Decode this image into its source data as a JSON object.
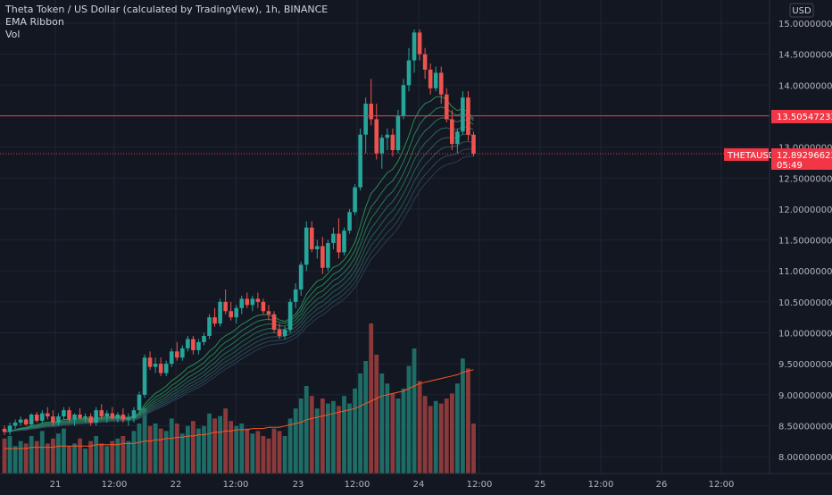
{
  "header": {
    "title": "Theta Token / US Dollar (calculated by TradingView), 1h, BINANCE",
    "indicator_1": "EMA Ribbon",
    "indicator_2": "Vol"
  },
  "axis": {
    "currency": "USD",
    "y_ticks": [
      "15.00000000",
      "14.50000000",
      "14.00000000",
      "13.50000000",
      "13.00000000",
      "12.50000000",
      "12.00000000",
      "11.50000000",
      "11.00000000",
      "10.50000000",
      "10.00000000",
      "9.50000000",
      "9.00000000",
      "8.50000000",
      "8.00000000"
    ],
    "x_ticks": [
      "21",
      "12:00",
      "22",
      "12:00",
      "23",
      "12:00",
      "24",
      "12:00",
      "25",
      "12:00",
      "26",
      "12:00"
    ]
  },
  "labels": {
    "alert_price": "13.50547233",
    "symbol": "THETAUSD",
    "last_price": "12.89296623",
    "countdown": "05:49"
  },
  "colors": {
    "background": "#131722",
    "up": "#26a69a",
    "down": "#ef5350",
    "vol_up": "#1e6c66",
    "vol_down": "#8b3a3c",
    "ribbon": "#2e9e62",
    "volume_ma": "#ff5722",
    "alert_line": "#f23645",
    "grid": "#1f2433",
    "axis_text": "#b2b5be"
  },
  "chart_data": {
    "type": "candlestick",
    "title": "Theta Token / US Dollar (calculated by TradingView), 1h, BINANCE",
    "x_range": [
      "21 00:00",
      "26 12:00"
    ],
    "y_range": [
      7.9,
      15.2
    ],
    "alert_line": 13.50547233,
    "last_price": 12.89296623,
    "ohlc": [
      [
        8.45,
        8.5,
        8.35,
        8.4
      ],
      [
        8.4,
        8.55,
        8.35,
        8.5
      ],
      [
        8.5,
        8.6,
        8.45,
        8.55
      ],
      [
        8.55,
        8.65,
        8.5,
        8.6
      ],
      [
        8.6,
        8.62,
        8.5,
        8.52
      ],
      [
        8.52,
        8.7,
        8.5,
        8.68
      ],
      [
        8.68,
        8.72,
        8.55,
        8.58
      ],
      [
        8.58,
        8.75,
        8.55,
        8.7
      ],
      [
        8.7,
        8.8,
        8.6,
        8.65
      ],
      [
        8.65,
        8.75,
        8.5,
        8.55
      ],
      [
        8.55,
        8.7,
        8.5,
        8.65
      ],
      [
        8.65,
        8.8,
        8.6,
        8.75
      ],
      [
        8.75,
        8.8,
        8.55,
        8.6
      ],
      [
        8.6,
        8.7,
        8.5,
        8.68
      ],
      [
        8.68,
        8.78,
        8.6,
        8.62
      ],
      [
        8.62,
        8.7,
        8.55,
        8.65
      ],
      [
        8.65,
        8.7,
        8.5,
        8.55
      ],
      [
        8.55,
        8.8,
        8.5,
        8.75
      ],
      [
        8.75,
        8.85,
        8.6,
        8.65
      ],
      [
        8.65,
        8.75,
        8.55,
        8.7
      ],
      [
        8.7,
        8.8,
        8.6,
        8.62
      ],
      [
        8.62,
        8.72,
        8.55,
        8.68
      ],
      [
        8.68,
        8.78,
        8.55,
        8.6
      ],
      [
        8.6,
        8.7,
        8.5,
        8.62
      ],
      [
        8.62,
        8.8,
        8.55,
        8.75
      ],
      [
        8.75,
        9.05,
        8.7,
        9.0
      ],
      [
        9.0,
        9.65,
        8.95,
        9.6
      ],
      [
        9.6,
        9.7,
        9.4,
        9.45
      ],
      [
        9.45,
        9.6,
        9.35,
        9.5
      ],
      [
        9.5,
        9.6,
        9.3,
        9.35
      ],
      [
        9.35,
        9.55,
        9.3,
        9.5
      ],
      [
        9.5,
        9.75,
        9.45,
        9.7
      ],
      [
        9.7,
        9.85,
        9.55,
        9.6
      ],
      [
        9.6,
        9.8,
        9.55,
        9.75
      ],
      [
        9.75,
        9.95,
        9.7,
        9.9
      ],
      [
        9.9,
        9.95,
        9.65,
        9.72
      ],
      [
        9.72,
        9.9,
        9.65,
        9.85
      ],
      [
        9.85,
        10.0,
        9.8,
        9.95
      ],
      [
        9.95,
        10.3,
        9.9,
        10.25
      ],
      [
        10.25,
        10.4,
        10.1,
        10.15
      ],
      [
        10.15,
        10.55,
        10.1,
        10.5
      ],
      [
        10.5,
        10.7,
        10.3,
        10.35
      ],
      [
        10.35,
        10.5,
        10.2,
        10.25
      ],
      [
        10.25,
        10.45,
        10.15,
        10.4
      ],
      [
        10.4,
        10.6,
        10.3,
        10.55
      ],
      [
        10.55,
        10.65,
        10.4,
        10.45
      ],
      [
        10.45,
        10.6,
        10.35,
        10.55
      ],
      [
        10.55,
        10.65,
        10.4,
        10.5
      ],
      [
        10.5,
        10.55,
        10.3,
        10.35
      ],
      [
        10.35,
        10.45,
        10.2,
        10.3
      ],
      [
        10.3,
        10.35,
        10.0,
        10.05
      ],
      [
        10.05,
        10.15,
        9.9,
        9.95
      ],
      [
        9.95,
        10.1,
        9.9,
        10.05
      ],
      [
        10.05,
        10.55,
        10.0,
        10.5
      ],
      [
        10.5,
        10.8,
        10.4,
        10.7
      ],
      [
        10.7,
        11.15,
        10.6,
        11.1
      ],
      [
        11.1,
        11.8,
        11.0,
        11.7
      ],
      [
        11.7,
        11.8,
        11.3,
        11.35
      ],
      [
        11.35,
        11.5,
        11.2,
        11.4
      ],
      [
        11.4,
        11.55,
        10.95,
        11.05
      ],
      [
        11.05,
        11.5,
        11.0,
        11.45
      ],
      [
        11.45,
        11.7,
        11.35,
        11.6
      ],
      [
        11.6,
        11.85,
        11.2,
        11.3
      ],
      [
        11.3,
        11.7,
        11.25,
        11.65
      ],
      [
        11.65,
        12.0,
        11.6,
        11.95
      ],
      [
        11.95,
        12.4,
        11.9,
        12.35
      ],
      [
        12.35,
        13.3,
        12.3,
        13.2
      ],
      [
        13.2,
        13.8,
        12.9,
        13.7
      ],
      [
        13.7,
        14.1,
        13.35,
        13.45
      ],
      [
        13.45,
        13.7,
        12.8,
        12.9
      ],
      [
        12.9,
        13.2,
        12.65,
        13.15
      ],
      [
        13.15,
        13.3,
        12.95,
        13.2
      ],
      [
        13.2,
        13.3,
        12.85,
        12.95
      ],
      [
        12.95,
        13.6,
        12.9,
        13.5
      ],
      [
        13.5,
        14.1,
        13.45,
        14.0
      ],
      [
        14.0,
        14.6,
        13.9,
        14.4
      ],
      [
        14.4,
        14.9,
        14.2,
        14.85
      ],
      [
        14.85,
        14.9,
        14.4,
        14.5
      ],
      [
        14.5,
        14.6,
        14.1,
        14.25
      ],
      [
        14.25,
        14.35,
        13.85,
        13.95
      ],
      [
        13.95,
        14.3,
        13.9,
        14.2
      ],
      [
        14.2,
        14.3,
        13.7,
        13.85
      ],
      [
        13.85,
        13.95,
        13.4,
        13.45
      ],
      [
        13.45,
        13.6,
        12.95,
        13.05
      ],
      [
        13.05,
        13.3,
        12.9,
        13.25
      ],
      [
        13.25,
        13.9,
        13.2,
        13.8
      ],
      [
        13.8,
        13.9,
        13.1,
        13.2
      ],
      [
        13.2,
        13.25,
        12.85,
        12.89
      ]
    ],
    "volume": [
      28,
      30,
      22,
      26,
      24,
      30,
      26,
      34,
      24,
      28,
      32,
      36,
      22,
      24,
      28,
      20,
      26,
      30,
      24,
      22,
      26,
      28,
      30,
      26,
      34,
      40,
      52,
      38,
      40,
      36,
      34,
      44,
      40,
      32,
      38,
      42,
      36,
      38,
      48,
      44,
      46,
      52,
      42,
      38,
      40,
      36,
      32,
      34,
      30,
      28,
      36,
      34,
      30,
      44,
      52,
      60,
      70,
      62,
      52,
      60,
      56,
      58,
      54,
      62,
      56,
      68,
      80,
      90,
      120,
      95,
      80,
      72,
      64,
      60,
      68,
      86,
      100,
      74,
      62,
      54,
      58,
      56,
      60,
      64,
      72,
      92,
      84,
      40
    ],
    "volume_ma": [
      20,
      20,
      20,
      20,
      20,
      21,
      21,
      21,
      21,
      21,
      22,
      22,
      22,
      22,
      22,
      22,
      22,
      23,
      23,
      23,
      23,
      23,
      24,
      24,
      24,
      25,
      26,
      26,
      27,
      27,
      28,
      28,
      29,
      29,
      30,
      30,
      31,
      31,
      32,
      33,
      33,
      34,
      34,
      35,
      35,
      35,
      36,
      36,
      36,
      37,
      37,
      37,
      38,
      39,
      40,
      41,
      43,
      44,
      45,
      46,
      47,
      48,
      49,
      50,
      51,
      52,
      54,
      56,
      58,
      60,
      62,
      63,
      64,
      65,
      66,
      68,
      70,
      72,
      73,
      74,
      75,
      76,
      77,
      78,
      79,
      81,
      82,
      83
    ],
    "x_ticks": [
      "21",
      "12:00",
      "22",
      "12:00",
      "23",
      "12:00",
      "24",
      "12:00",
      "25",
      "12:00",
      "26",
      "12:00"
    ],
    "y_ticks": [
      15.0,
      14.5,
      14.0,
      13.5,
      13.0,
      12.5,
      12.0,
      11.5,
      11.0,
      10.5,
      10.0,
      9.5,
      9.0,
      8.5,
      8.0
    ]
  }
}
